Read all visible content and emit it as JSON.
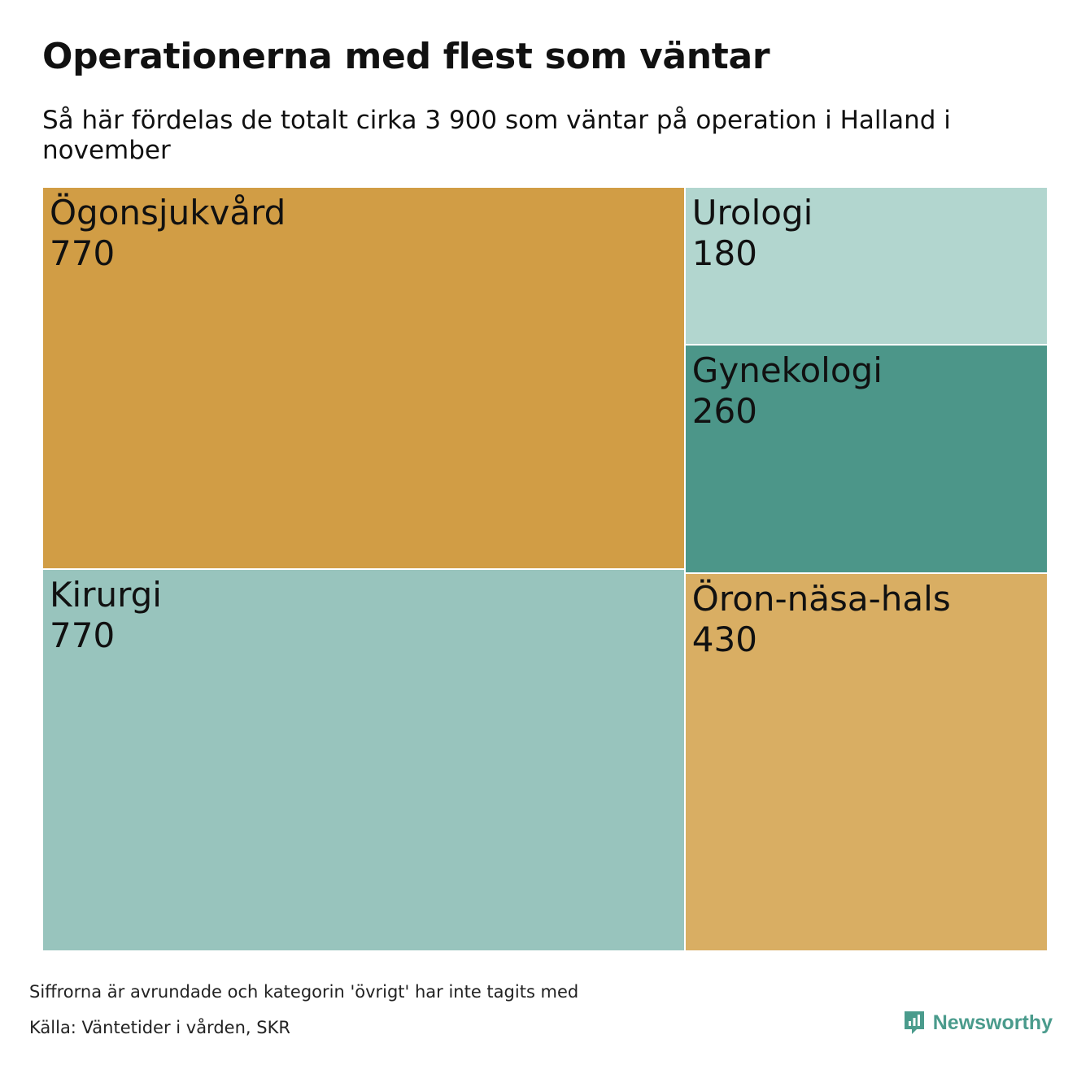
{
  "title": "Operationerna med flest som väntar",
  "subtitle": "Så här fördelas de totalt cirka 3 900 som väntar på operation i Halland i november",
  "chart_data": {
    "type": "treemap",
    "title": "Operationerna med flest som väntar",
    "subtitle": "Så här fördelas de totalt cirka 3 900 som väntar på operation i Halland i november",
    "items": [
      {
        "name": "Ögonsjukvård",
        "value": 770,
        "value_label": "770",
        "color": "#d19d45"
      },
      {
        "name": "Kirurgi",
        "value": 770,
        "value_label": "770",
        "color": "#98c4bd"
      },
      {
        "name": "Urologi",
        "value": 180,
        "value_label": "180",
        "color": "#b2d6cf"
      },
      {
        "name": "Gynekologi",
        "value": 260,
        "value_label": "260",
        "color": "#4c9689"
      },
      {
        "name": "Öron-näsa-hals",
        "value": 430,
        "value_label": "430",
        "color": "#d9ae63"
      }
    ]
  },
  "footer": {
    "note": "Siffrorna är avrundade och kategorin 'övrigt' har inte tagits med",
    "source": "Källa: Väntetider i vården, SKR",
    "brand": "Newsworthy",
    "brand_icon": "newsworthy-logo-icon",
    "brand_color": "#4a9b8c"
  }
}
